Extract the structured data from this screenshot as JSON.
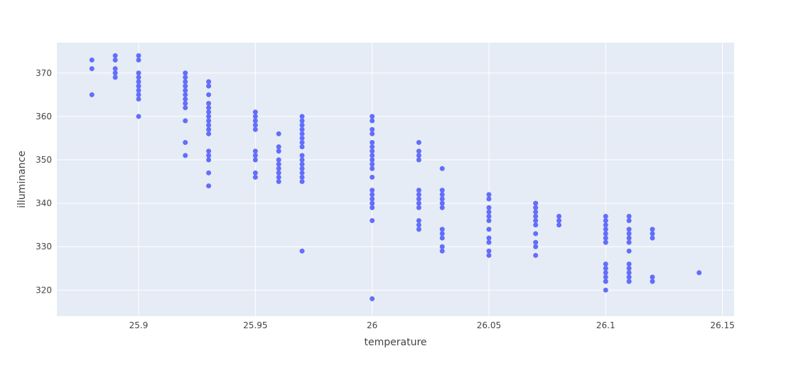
{
  "chart_data": {
    "type": "scatter",
    "title": "",
    "xlabel": "temperature",
    "ylabel": "illuminance",
    "xlim": [
      25.865,
      26.155
    ],
    "ylim": [
      314,
      377
    ],
    "x_ticks": [
      25.9,
      25.95,
      26,
      26.05,
      26.1,
      26.15
    ],
    "x_tick_labels": [
      "25.9",
      "25.95",
      "26",
      "26.05",
      "26.1",
      "26.15"
    ],
    "y_ticks": [
      320,
      330,
      340,
      350,
      360,
      370
    ],
    "y_tick_labels": [
      "320",
      "330",
      "340",
      "350",
      "360",
      "370"
    ],
    "grid": true,
    "legend": "none",
    "colors": {
      "marker": "#636efa",
      "plot_bg": "#e5ecf6",
      "grid": "#ffffff",
      "text": "#444444"
    },
    "series": [
      {
        "points": [
          [
            25.88,
            373
          ],
          [
            25.88,
            371
          ],
          [
            25.88,
            365
          ],
          [
            25.89,
            374
          ],
          [
            25.89,
            373
          ],
          [
            25.89,
            371
          ],
          [
            25.89,
            370
          ],
          [
            25.89,
            369
          ],
          [
            25.9,
            374
          ],
          [
            25.9,
            373
          ],
          [
            25.9,
            370
          ],
          [
            25.9,
            369
          ],
          [
            25.9,
            368
          ],
          [
            25.9,
            367
          ],
          [
            25.9,
            366
          ],
          [
            25.9,
            365
          ],
          [
            25.9,
            364
          ],
          [
            25.9,
            360
          ],
          [
            25.92,
            370
          ],
          [
            25.92,
            369
          ],
          [
            25.92,
            368
          ],
          [
            25.92,
            367
          ],
          [
            25.92,
            366
          ],
          [
            25.92,
            365
          ],
          [
            25.92,
            364
          ],
          [
            25.92,
            363
          ],
          [
            25.92,
            362
          ],
          [
            25.92,
            359
          ],
          [
            25.92,
            354
          ],
          [
            25.92,
            351
          ],
          [
            25.93,
            368
          ],
          [
            25.93,
            367
          ],
          [
            25.93,
            365
          ],
          [
            25.93,
            363
          ],
          [
            25.93,
            362
          ],
          [
            25.93,
            361
          ],
          [
            25.93,
            360
          ],
          [
            25.93,
            359
          ],
          [
            25.93,
            358
          ],
          [
            25.93,
            357
          ],
          [
            25.93,
            356
          ],
          [
            25.93,
            352
          ],
          [
            25.93,
            351
          ],
          [
            25.93,
            350
          ],
          [
            25.93,
            347
          ],
          [
            25.93,
            344
          ],
          [
            25.95,
            361
          ],
          [
            25.95,
            360
          ],
          [
            25.95,
            359
          ],
          [
            25.95,
            358
          ],
          [
            25.95,
            357
          ],
          [
            25.95,
            352
          ],
          [
            25.95,
            351
          ],
          [
            25.95,
            350
          ],
          [
            25.95,
            347
          ],
          [
            25.95,
            346
          ],
          [
            25.96,
            356
          ],
          [
            25.96,
            353
          ],
          [
            25.96,
            352
          ],
          [
            25.96,
            350
          ],
          [
            25.96,
            349
          ],
          [
            25.96,
            348
          ],
          [
            25.96,
            347
          ],
          [
            25.96,
            346
          ],
          [
            25.96,
            345
          ],
          [
            25.97,
            360
          ],
          [
            25.97,
            359
          ],
          [
            25.97,
            358
          ],
          [
            25.97,
            357
          ],
          [
            25.97,
            356
          ],
          [
            25.97,
            355
          ],
          [
            25.97,
            354
          ],
          [
            25.97,
            353
          ],
          [
            25.97,
            351
          ],
          [
            25.97,
            350
          ],
          [
            25.97,
            349
          ],
          [
            25.97,
            348
          ],
          [
            25.97,
            347
          ],
          [
            25.97,
            346
          ],
          [
            25.97,
            345
          ],
          [
            25.97,
            329
          ],
          [
            26.0,
            360
          ],
          [
            26.0,
            359
          ],
          [
            26.0,
            357
          ],
          [
            26.0,
            356
          ],
          [
            26.0,
            354
          ],
          [
            26.0,
            353
          ],
          [
            26.0,
            352
          ],
          [
            26.0,
            351
          ],
          [
            26.0,
            350
          ],
          [
            26.0,
            349
          ],
          [
            26.0,
            348
          ],
          [
            26.0,
            346
          ],
          [
            26.0,
            343
          ],
          [
            26.0,
            342
          ],
          [
            26.0,
            341
          ],
          [
            26.0,
            340
          ],
          [
            26.0,
            339
          ],
          [
            26.0,
            336
          ],
          [
            26.0,
            318
          ],
          [
            26.02,
            354
          ],
          [
            26.02,
            352
          ],
          [
            26.02,
            351
          ],
          [
            26.02,
            350
          ],
          [
            26.02,
            343
          ],
          [
            26.02,
            342
          ],
          [
            26.02,
            341
          ],
          [
            26.02,
            340
          ],
          [
            26.02,
            339
          ],
          [
            26.02,
            336
          ],
          [
            26.02,
            335
          ],
          [
            26.02,
            334
          ],
          [
            26.03,
            348
          ],
          [
            26.03,
            343
          ],
          [
            26.03,
            342
          ],
          [
            26.03,
            341
          ],
          [
            26.03,
            340
          ],
          [
            26.03,
            339
          ],
          [
            26.03,
            334
          ],
          [
            26.03,
            333
          ],
          [
            26.03,
            332
          ],
          [
            26.03,
            330
          ],
          [
            26.03,
            329
          ],
          [
            26.05,
            342
          ],
          [
            26.05,
            341
          ],
          [
            26.05,
            339
          ],
          [
            26.05,
            338
          ],
          [
            26.05,
            337
          ],
          [
            26.05,
            336
          ],
          [
            26.05,
            334
          ],
          [
            26.05,
            332
          ],
          [
            26.05,
            331
          ],
          [
            26.05,
            329
          ],
          [
            26.05,
            328
          ],
          [
            26.07,
            340
          ],
          [
            26.07,
            339
          ],
          [
            26.07,
            338
          ],
          [
            26.07,
            337
          ],
          [
            26.07,
            336
          ],
          [
            26.07,
            335
          ],
          [
            26.07,
            333
          ],
          [
            26.07,
            331
          ],
          [
            26.07,
            330
          ],
          [
            26.07,
            328
          ],
          [
            26.08,
            337
          ],
          [
            26.08,
            336
          ],
          [
            26.08,
            335
          ],
          [
            26.1,
            337
          ],
          [
            26.1,
            336
          ],
          [
            26.1,
            335
          ],
          [
            26.1,
            334
          ],
          [
            26.1,
            333
          ],
          [
            26.1,
            332
          ],
          [
            26.1,
            331
          ],
          [
            26.1,
            326
          ],
          [
            26.1,
            325
          ],
          [
            26.1,
            324
          ],
          [
            26.1,
            323
          ],
          [
            26.1,
            322
          ],
          [
            26.1,
            320
          ],
          [
            26.11,
            337
          ],
          [
            26.11,
            336
          ],
          [
            26.11,
            334
          ],
          [
            26.11,
            333
          ],
          [
            26.11,
            332
          ],
          [
            26.11,
            331
          ],
          [
            26.11,
            329
          ],
          [
            26.11,
            326
          ],
          [
            26.11,
            325
          ],
          [
            26.11,
            324
          ],
          [
            26.11,
            323
          ],
          [
            26.11,
            322
          ],
          [
            26.12,
            334
          ],
          [
            26.12,
            333
          ],
          [
            26.12,
            332
          ],
          [
            26.12,
            323
          ],
          [
            26.12,
            322
          ],
          [
            26.14,
            324
          ]
        ]
      }
    ]
  }
}
